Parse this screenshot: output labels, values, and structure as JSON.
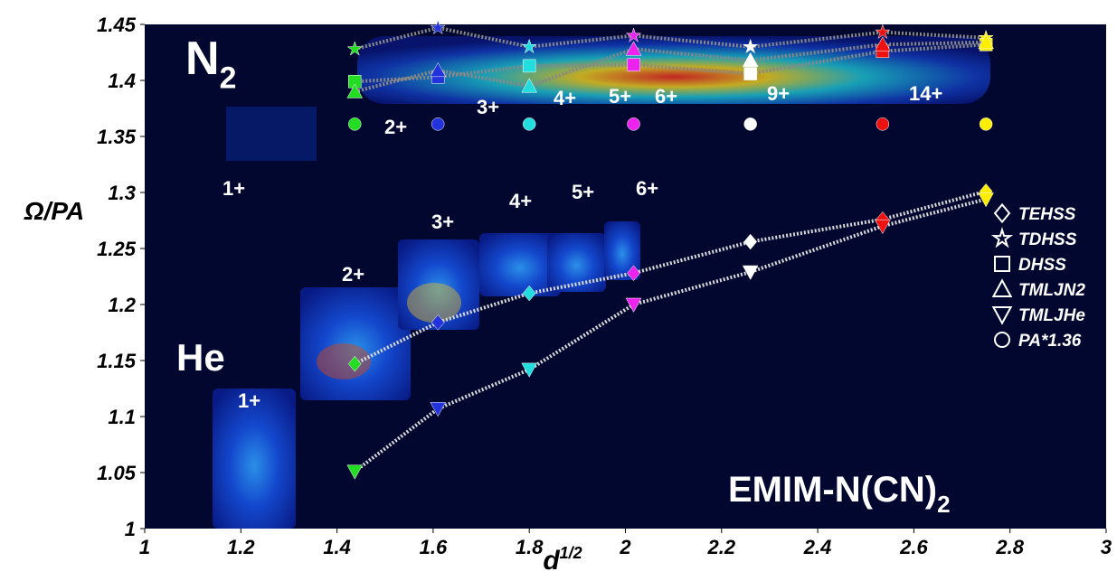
{
  "chart_data": {
    "type": "scatter",
    "background": "#01072e",
    "x_label": {
      "text": "d",
      "sup": "1/2"
    },
    "y_label": "Ω/PA",
    "xlim": [
      1,
      3
    ],
    "ylim": [
      1,
      1.45
    ],
    "xticks": [
      1,
      1.2,
      1.4,
      1.6,
      1.8,
      2,
      2.2,
      2.4,
      2.6,
      2.8,
      3
    ],
    "yticks": [
      1,
      1.05,
      1.1,
      1.15,
      1.2,
      1.25,
      1.3,
      1.35,
      1.4,
      1.45
    ],
    "x": [
      1.437,
      1.61,
      1.8,
      2.017,
      2.26,
      2.535,
      2.75
    ],
    "point_colors": [
      "#22dd22",
      "#2233dd",
      "#22dddd",
      "#ee22ee",
      "#ffffff",
      "#ee1111",
      "#ffee00"
    ],
    "series": [
      {
        "name": "TEHSS",
        "marker": "diamond",
        "line": "#d8d8d8",
        "values": [
          1.147,
          1.184,
          1.21,
          1.228,
          1.256,
          1.276,
          1.301
        ]
      },
      {
        "name": "TDHSS",
        "marker": "star",
        "line": "#888888",
        "values": [
          1.428,
          1.447,
          1.43,
          1.44,
          1.43,
          1.443,
          1.438
        ]
      },
      {
        "name": "DHSS",
        "marker": "square",
        "line": "#888888",
        "values": [
          1.399,
          1.403,
          1.413,
          1.414,
          1.406,
          1.426,
          1.432
        ]
      },
      {
        "name": "TMLJN2",
        "marker": "triangle-up",
        "line": "#888888",
        "values": [
          1.39,
          1.409,
          1.395,
          1.428,
          1.418,
          1.432,
          1.434
        ]
      },
      {
        "name": "TMLJHe",
        "marker": "triangle-down",
        "line": "#d8d8d8",
        "values": [
          1.051,
          1.107,
          1.142,
          1.2,
          1.229,
          1.27,
          1.294
        ]
      },
      {
        "name": "PA*1.36",
        "marker": "circle",
        "line": null,
        "values": [
          1.361,
          1.361,
          1.361,
          1.361,
          1.361,
          1.361,
          1.361
        ]
      }
    ],
    "annotations": [
      {
        "text": "N",
        "sub": "2"
      },
      {
        "text": "He"
      },
      {
        "text": "EMIM-N(CN)",
        "sub": "2"
      },
      {
        "text": "1+"
      },
      {
        "text": "2+"
      },
      {
        "text": "3+"
      },
      {
        "text": "4+"
      },
      {
        "text": "5+"
      },
      {
        "text": "6+"
      },
      {
        "text": "1+"
      },
      {
        "text": "2+"
      },
      {
        "text": "3+"
      },
      {
        "text": "4+"
      },
      {
        "text": "5+"
      },
      {
        "text": "6+"
      },
      {
        "text": "9+"
      },
      {
        "text": "14+"
      }
    ]
  }
}
